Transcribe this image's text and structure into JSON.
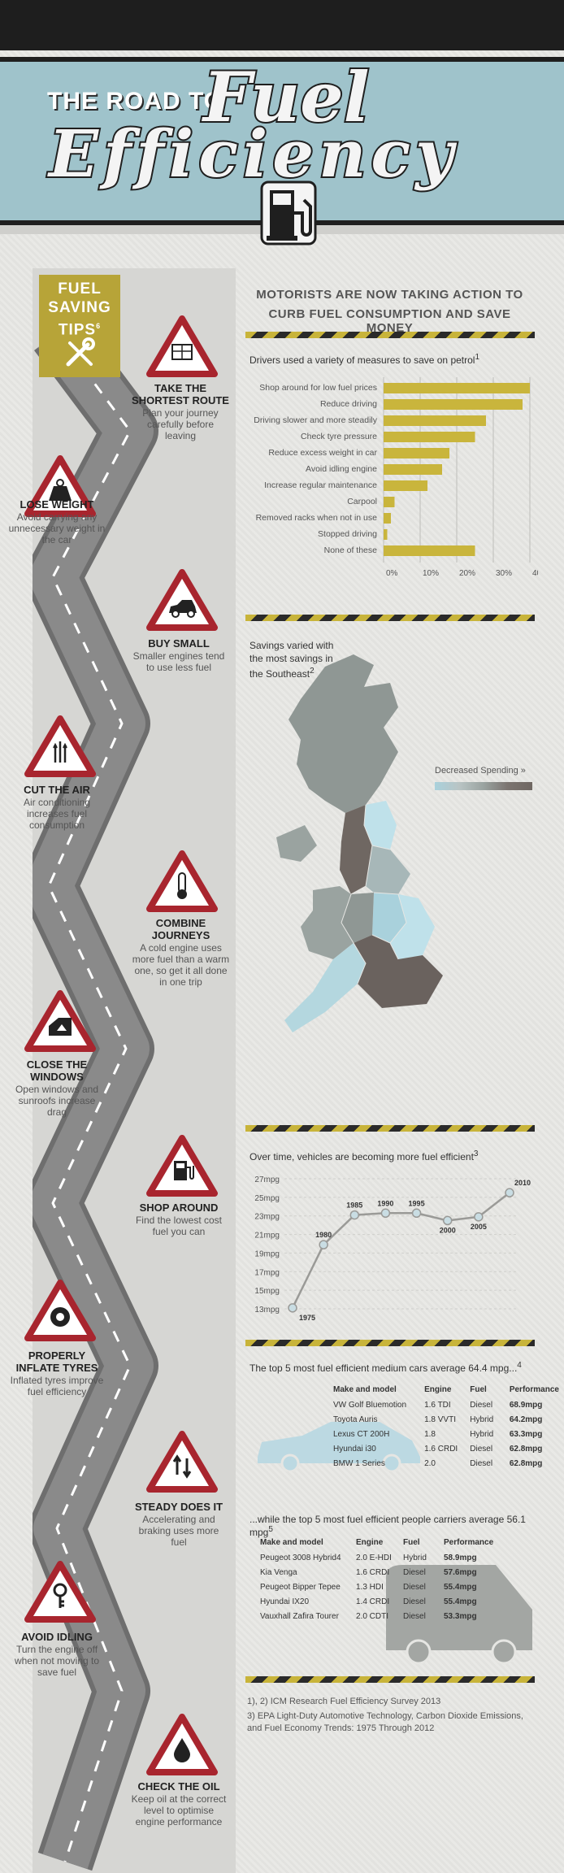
{
  "header": {
    "title_small": "THE ROAD TO",
    "title_script_1": "Fuel",
    "title_script_2": "Efficiency"
  },
  "tips": {
    "badge_title": "FUEL SAVING TIPS",
    "badge_sup": "6",
    "items": [
      {
        "title": "TAKE THE SHORTEST ROUTE",
        "desc": "Plan your journey carefully before leaving",
        "icon": "map-icon"
      },
      {
        "title": "LOSE WEIGHT",
        "desc": "Avoid carrying any unnecessary weight in the car",
        "icon": "weight-icon"
      },
      {
        "title": "BUY SMALL",
        "desc": "Smaller engines tend to use less fuel",
        "icon": "small-car-icon"
      },
      {
        "title": "CUT THE AIR",
        "desc": "Air conditioning increases fuel consumption",
        "icon": "air-icon"
      },
      {
        "title": "COMBINE JOURNEYS",
        "desc": "A cold engine uses more fuel than a warm one, so get it all done in one trip",
        "icon": "thermometer-icon"
      },
      {
        "title": "CLOSE THE WINDOWS",
        "desc": "Open windows and sunroofs increase drag",
        "icon": "window-icon"
      },
      {
        "title": "SHOP AROUND",
        "desc": "Find the lowest cost fuel you can",
        "icon": "fuel-pump-icon"
      },
      {
        "title": "PROPERLY INFLATE TYRES",
        "desc": "Inflated tyres improve fuel efficiency",
        "icon": "tyre-icon"
      },
      {
        "title": "STEADY DOES IT",
        "desc": "Accelerating and braking uses more fuel",
        "icon": "up-down-arrows-icon"
      },
      {
        "title": "AVOID IDLING",
        "desc": "Turn the engine off when not moving to save fuel",
        "icon": "key-icon"
      },
      {
        "title": "CHECK THE OIL",
        "desc": "Keep oil at the correct level to optimise engine performance",
        "icon": "oil-drop-icon"
      }
    ]
  },
  "section": {
    "headline_1": "MOTORISTS ARE NOW TAKING ACTION TO",
    "headline_2": "CURB FUEL CONSUMPTION AND SAVE MONEY"
  },
  "colors": {
    "accent": "#c9b53c",
    "sign_red": "#a8252e",
    "map_light": "#a9d1dc",
    "map_dark": "#6f6762"
  },
  "map": {
    "title": "Savings varied with the most savings in the Southeast",
    "title_sup": "2",
    "legend_label": "Decreased Spending »"
  },
  "chart_data": [
    {
      "type": "bar",
      "orientation": "horizontal",
      "title": "Drivers used a variety of measures to save on petrol",
      "title_sup": "1",
      "categories": [
        "Shop around for low fuel prices",
        "Reduce driving",
        "Driving slower and more steadily",
        "Check tyre pressure",
        "Reduce excess weight in car",
        "Avoid idling engine",
        "Increase regular maintenance",
        "Carpool",
        "Removed racks when not in use",
        "Stopped driving",
        "None of these"
      ],
      "values": [
        40,
        38,
        28,
        25,
        18,
        16,
        12,
        3,
        2,
        1,
        25
      ],
      "xlim": [
        0,
        40
      ],
      "xticks": [
        "0%",
        "10%",
        "20%",
        "30%",
        "40%"
      ]
    },
    {
      "type": "line",
      "title": "Over time, vehicles are becoming more fuel efficient",
      "title_sup": "3",
      "x": [
        "1975",
        "1980",
        "1985",
        "1990",
        "1995",
        "2000",
        "2005",
        "2010"
      ],
      "values": [
        13.1,
        19.9,
        23.1,
        23.3,
        23.3,
        22.5,
        22.9,
        25.5
      ],
      "ylim": [
        13,
        27
      ],
      "yticks": [
        "13mpg",
        "15mpg",
        "17mpg",
        "19mpg",
        "21mpg",
        "23mpg",
        "25mpg",
        "27mpg"
      ]
    },
    {
      "type": "table",
      "title": "The top 5 most fuel efficient medium cars average 64.4 mpg...",
      "title_sup": "4",
      "columns": [
        "Make and model",
        "Engine",
        "Fuel",
        "Performance"
      ],
      "rows": [
        [
          "VW Golf Bluemotion",
          "1.6 TDI",
          "Diesel",
          "68.9mpg"
        ],
        [
          "Toyota Auris",
          "1.8 VVTI",
          "Hybrid",
          "64.2mpg"
        ],
        [
          "Lexus CT 200H",
          "1.8",
          "Hybrid",
          "63.3mpg"
        ],
        [
          "Hyundai i30",
          "1.6 CRDI",
          "Diesel",
          "62.8mpg"
        ],
        [
          "BMW 1 Series",
          "2.0",
          "Diesel",
          "62.8mpg"
        ]
      ]
    },
    {
      "type": "table",
      "title": "...while the top 5 most fuel efficient people carriers average 56.1 mpg",
      "title_sup": "5",
      "columns": [
        "Make and model",
        "Engine",
        "Fuel",
        "Performance"
      ],
      "rows": [
        [
          "Peugeot 3008 Hybrid4",
          "2.0 E-HDI",
          "Hybrid",
          "58.9mpg"
        ],
        [
          "Kia Venga",
          "1.6 CRDI",
          "Diesel",
          "57.6mpg"
        ],
        [
          "Peugeot Bipper Tepee",
          "1.3 HDI",
          "Diesel",
          "55.4mpg"
        ],
        [
          "Hyundai IX20",
          "1.4 CRDI",
          "Diesel",
          "55.4mpg"
        ],
        [
          "Vauxhall Zafira Tourer",
          "2.0 CDTI",
          "Diesel",
          "53.3mpg"
        ]
      ]
    }
  ],
  "footnotes": [
    "1), 2) ICM Research Fuel Efficiency Survey 2013",
    "3) EPA Light-Duty Automotive Technology, Carbon Dioxide Emissions, and Fuel Economy Trends: 1975 Through 2012"
  ]
}
